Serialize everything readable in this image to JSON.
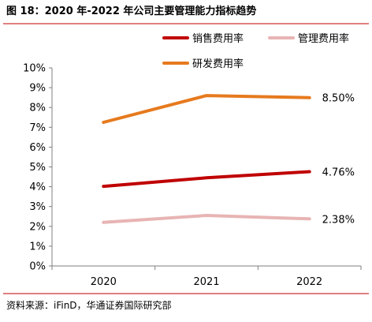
{
  "chart_data": {
    "type": "line",
    "title": "图 18：2020 年-2022 年公司主要管理能力指标趋势",
    "categories": [
      "2020",
      "2021",
      "2022"
    ],
    "y_tick_labels": [
      "0%",
      "1%",
      "2%",
      "3%",
      "4%",
      "5%",
      "6%",
      "7%",
      "8%",
      "9%",
      "10%"
    ],
    "ylim": [
      0,
      10
    ],
    "y_unit": "%",
    "grid": false,
    "legend_position": "top",
    "series": [
      {
        "name": "销售费用率",
        "color": "#C00000",
        "values": [
          4.02,
          4.45,
          4.76
        ],
        "end_label": "4.76%"
      },
      {
        "name": "管理费用率",
        "color": "#E8B4B4",
        "values": [
          2.2,
          2.55,
          2.38
        ],
        "end_label": "2.38%"
      },
      {
        "name": "研发费用率",
        "color": "#E67A1E",
        "values": [
          7.25,
          8.6,
          8.5
        ],
        "end_label": "8.50%"
      }
    ],
    "source": "资料来源：iFinD，华通证券国际研究部"
  },
  "colors": {
    "rule": "#C00000",
    "axis": "#7f7f7f"
  }
}
